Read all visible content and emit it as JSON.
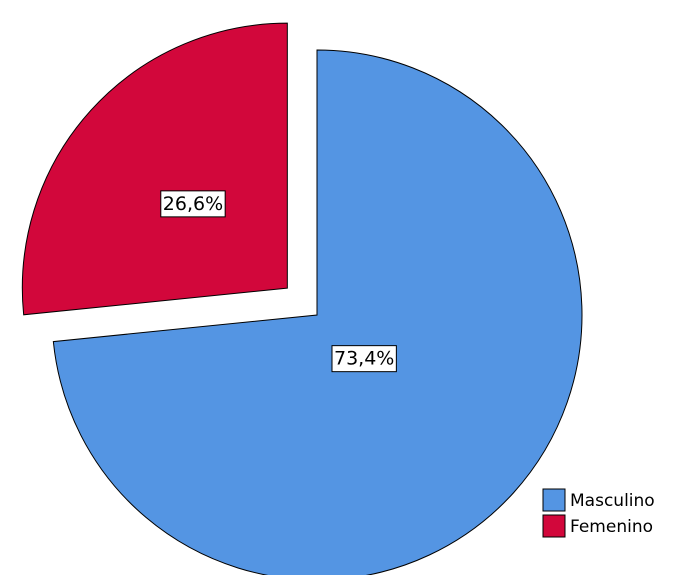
{
  "chart_data": {
    "type": "pie",
    "title": "",
    "series": [
      {
        "name": "Masculino",
        "value": 73.4,
        "label": "73,4%",
        "color": "#5495E3",
        "exploded": false
      },
      {
        "name": "Femenino",
        "value": 26.6,
        "label": "26,6%",
        "color": "#D2073B",
        "exploded": true
      }
    ],
    "legend": {
      "placement": "bottom-right",
      "entries": [
        "Masculino",
        "Femenino"
      ]
    }
  }
}
